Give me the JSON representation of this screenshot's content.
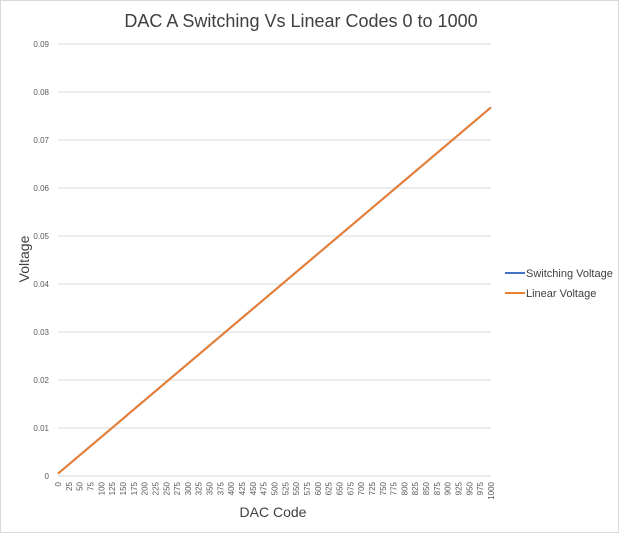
{
  "chart_data": {
    "type": "line",
    "title": "DAC A Switching Vs Linear Codes 0 to 1000",
    "xlabel": "DAC Code",
    "ylabel": "Voltage",
    "x_ticks": [
      "0",
      "25",
      "50",
      "75",
      "100",
      "125",
      "150",
      "175",
      "200",
      "225",
      "250",
      "275",
      "300",
      "325",
      "350",
      "375",
      "400",
      "425",
      "450",
      "475",
      "500",
      "525",
      "550",
      "575",
      "600",
      "625",
      "650",
      "675",
      "700",
      "725",
      "750",
      "775",
      "800",
      "825",
      "850",
      "875",
      "900",
      "925",
      "950",
      "975",
      "1000"
    ],
    "y_ticks": [
      "0",
      "0.01",
      "0.02",
      "0.03",
      "0.04",
      "0.05",
      "0.06",
      "0.07",
      "0.08",
      "0.09"
    ],
    "xlim": [
      0,
      1000
    ],
    "ylim": [
      0,
      0.09
    ],
    "grid": "horizontal",
    "legend_position": "right",
    "series": [
      {
        "name": "Switching Voltage",
        "color": "#4472C4",
        "x": [
          0,
          1000
        ],
        "y": [
          0.0005,
          0.0768
        ]
      },
      {
        "name": "Linear Voltage",
        "color": "#ED7D31",
        "x": [
          0,
          1000
        ],
        "y": [
          0.0005,
          0.0768
        ]
      }
    ]
  }
}
